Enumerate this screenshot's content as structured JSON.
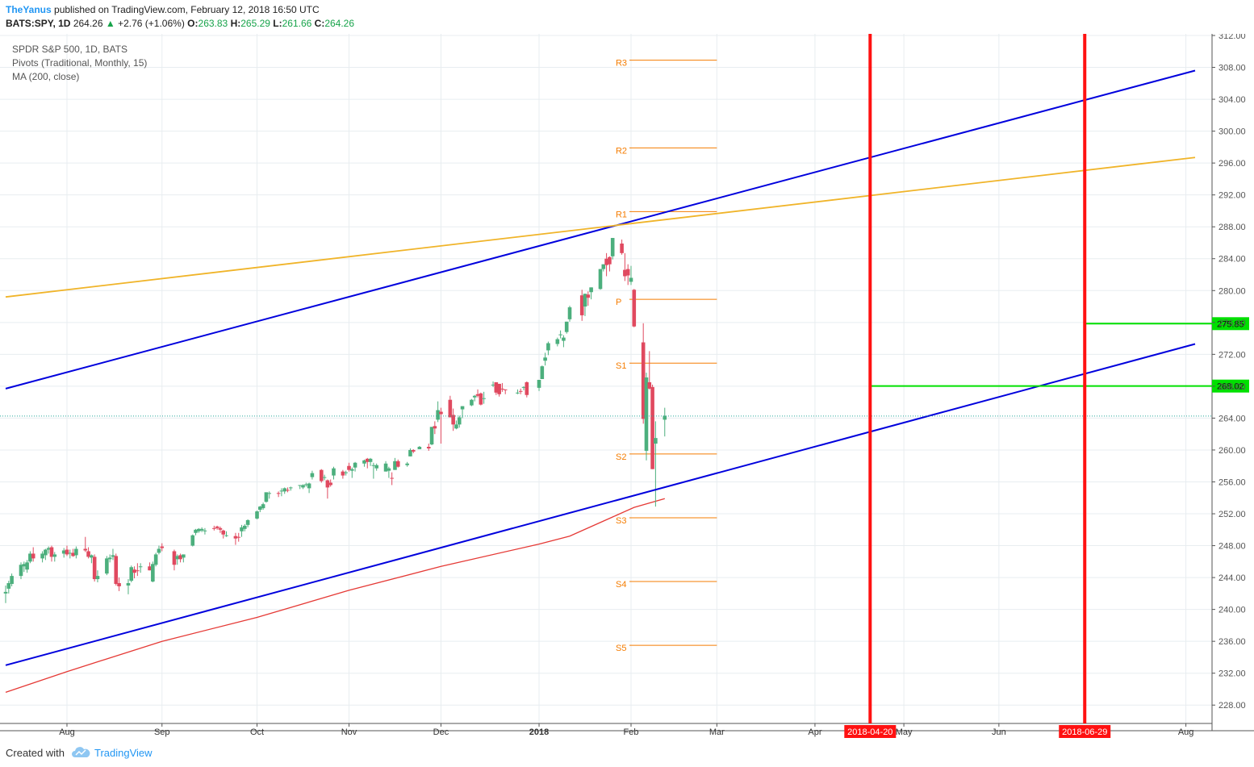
{
  "header": {
    "author": "TheYanus",
    "published_text": "published on TradingView.com, February 12, 2018 16:50 UTC",
    "symbol": "BATS:SPY, 1D",
    "last": "264.26",
    "change_arrow": "▲",
    "change": "+2.76 (+1.06%)",
    "o_label": "O:",
    "o_value": "263.83",
    "h_label": "H:",
    "h_value": "265.29",
    "l_label": "L:",
    "l_value": "261.66",
    "c_label": "C:",
    "c_value": "264.26"
  },
  "legend": {
    "line1": "SPDR S&P 500, 1D, BATS",
    "line2": "Pivots (Traditional, Monthly, 15)",
    "line3": "MA (200, close)"
  },
  "footer": {
    "created_with": "Created with",
    "brand": "TradingView",
    "brand_icon": "tradingview-cloud-icon"
  },
  "colors": {
    "up": "#4caf7d",
    "down": "#e0495f",
    "pivot": "#f57c00",
    "channel": "#0000dd",
    "yellow_line": "#f0b429",
    "ma": "#e53935",
    "vline": "#ff1111",
    "hline": "#00e000",
    "grid": "#e8edf0",
    "last_line": "#26a69a"
  },
  "chart_data": {
    "type": "candlestick",
    "symbol": "SPY",
    "y_axis": {
      "min": 226.0,
      "max": 312.0,
      "ticks": [
        "228.00",
        "232.00",
        "236.00",
        "240.00",
        "244.00",
        "248.00",
        "252.00",
        "256.00",
        "260.00",
        "264.00",
        "268.00",
        "272.00",
        "276.00",
        "280.00",
        "284.00",
        "288.00",
        "292.00",
        "296.00",
        "300.00",
        "304.00",
        "308.00",
        "312.00"
      ]
    },
    "x_axis": {
      "labels": [
        {
          "text": "Aug",
          "date": "2017-08-01",
          "bold": false
        },
        {
          "text": "Sep",
          "date": "2017-09-01",
          "bold": false
        },
        {
          "text": "Oct",
          "date": "2017-10-02",
          "bold": false
        },
        {
          "text": "Nov",
          "date": "2017-11-01",
          "bold": false
        },
        {
          "text": "Dec",
          "date": "2017-12-01",
          "bold": false
        },
        {
          "text": "2018",
          "date": "2018-01-02",
          "bold": true
        },
        {
          "text": "Feb",
          "date": "2018-02-01",
          "bold": false
        },
        {
          "text": "Mar",
          "date": "2018-03-01",
          "bold": false
        },
        {
          "text": "Apr",
          "date": "2018-04-02",
          "bold": false
        },
        {
          "text": "May",
          "date": "2018-05-01",
          "bold": false
        },
        {
          "text": "Jun",
          "date": "2018-06-01",
          "bold": false
        },
        {
          "text": "Aug",
          "date": "2018-08-01",
          "bold": false
        }
      ]
    },
    "last_price": 264.26,
    "candles": [
      [
        "2017-07-12",
        242.0,
        243.0,
        240.8,
        242.2
      ],
      [
        "2017-07-13",
        242.6,
        243.6,
        242.0,
        243.3
      ],
      [
        "2017-07-14",
        243.2,
        244.5,
        242.9,
        244.2
      ],
      [
        "2017-07-17",
        244.2,
        245.9,
        243.8,
        245.6
      ],
      [
        "2017-07-18",
        245.4,
        246.0,
        244.7,
        245.7
      ],
      [
        "2017-07-19",
        245.0,
        246.2,
        244.6,
        245.9
      ],
      [
        "2017-07-20",
        246.0,
        247.3,
        245.8,
        247.0
      ],
      [
        "2017-07-21",
        247.0,
        247.8,
        246.0,
        246.4
      ],
      [
        "2017-07-24",
        246.4,
        247.3,
        245.9,
        247.0
      ],
      [
        "2017-07-25",
        246.8,
        247.6,
        246.2,
        247.5
      ],
      [
        "2017-07-26",
        247.5,
        247.9,
        247.0,
        247.7
      ],
      [
        "2017-07-27",
        247.8,
        248.0,
        246.0,
        246.6
      ],
      [
        "2017-07-28",
        246.6,
        247.2,
        246.0,
        246.9
      ],
      [
        "2017-07-31",
        247.0,
        247.7,
        246.5,
        247.4
      ],
      [
        "2017-08-01",
        247.5,
        248.0,
        246.7,
        246.9
      ],
      [
        "2017-08-02",
        247.0,
        247.5,
        246.4,
        247.1
      ],
      [
        "2017-08-03",
        247.1,
        247.6,
        246.6,
        246.7
      ],
      [
        "2017-08-04",
        246.8,
        247.9,
        246.4,
        247.6
      ],
      [
        "2017-08-07",
        247.6,
        249.1,
        247.2,
        247.4
      ],
      [
        "2017-08-08",
        247.3,
        247.8,
        246.4,
        246.6
      ],
      [
        "2017-08-09",
        246.5,
        246.9,
        245.8,
        246.8
      ],
      [
        "2017-08-10",
        246.6,
        246.9,
        243.5,
        243.8
      ],
      [
        "2017-08-11",
        243.8,
        244.9,
        243.4,
        244.2
      ],
      [
        "2017-08-14",
        244.5,
        246.7,
        244.3,
        246.4
      ],
      [
        "2017-08-15",
        246.3,
        246.9,
        245.9,
        246.5
      ],
      [
        "2017-08-16",
        246.6,
        247.6,
        246.2,
        246.8
      ],
      [
        "2017-08-17",
        246.7,
        247.0,
        243.0,
        243.2
      ],
      [
        "2017-08-18",
        243.3,
        244.0,
        242.3,
        242.9
      ],
      [
        "2017-08-21",
        243.0,
        243.8,
        241.9,
        243.3
      ],
      [
        "2017-08-22",
        243.6,
        245.5,
        243.4,
        245.3
      ],
      [
        "2017-08-23",
        245.0,
        245.4,
        243.9,
        244.6
      ],
      [
        "2017-08-24",
        244.9,
        245.8,
        244.2,
        244.8
      ],
      [
        "2017-08-25",
        245.3,
        245.8,
        244.6,
        245.4
      ],
      [
        "2017-08-28",
        245.4,
        245.9,
        244.9,
        244.9
      ],
      [
        "2017-08-29",
        243.5,
        246.0,
        243.4,
        245.7
      ],
      [
        "2017-08-30",
        245.6,
        247.1,
        245.4,
        246.9
      ],
      [
        "2017-08-31",
        247.1,
        248.0,
        246.9,
        247.6
      ],
      [
        "2017-09-01",
        247.9,
        248.3,
        247.3,
        247.7
      ],
      [
        "2017-09-05",
        247.3,
        247.5,
        244.9,
        245.6
      ],
      [
        "2017-09-06",
        246.3,
        246.9,
        245.6,
        246.7
      ],
      [
        "2017-09-07",
        246.8,
        247.0,
        245.9,
        246.3
      ],
      [
        "2017-09-08",
        246.5,
        246.9,
        245.9,
        246.9
      ],
      [
        "2017-09-11",
        248.0,
        249.4,
        247.9,
        249.3
      ],
      [
        "2017-09-12",
        249.6,
        250.1,
        249.3,
        250.0
      ],
      [
        "2017-09-13",
        249.8,
        250.2,
        249.6,
        250.1
      ],
      [
        "2017-09-14",
        249.9,
        250.3,
        249.7,
        250.1
      ],
      [
        "2017-09-15",
        249.8,
        250.2,
        249.4,
        249.9
      ],
      [
        "2017-09-18",
        250.2,
        250.5,
        249.9,
        250.1
      ],
      [
        "2017-09-19",
        250.4,
        250.5,
        250.0,
        250.2
      ],
      [
        "2017-09-20",
        250.2,
        250.4,
        249.6,
        250.0
      ],
      [
        "2017-09-21",
        249.9,
        250.0,
        248.9,
        249.4
      ],
      [
        "2017-09-22",
        249.2,
        249.8,
        249.1,
        249.3
      ],
      [
        "2017-09-25",
        249.2,
        249.6,
        248.1,
        248.9
      ],
      [
        "2017-09-26",
        249.1,
        249.6,
        248.5,
        249.0
      ],
      [
        "2017-09-27",
        249.8,
        250.6,
        249.1,
        250.3
      ],
      [
        "2017-09-28",
        250.1,
        250.7,
        249.8,
        250.5
      ],
      [
        "2017-09-29",
        250.6,
        251.3,
        250.3,
        251.2
      ],
      [
        "2017-10-02",
        251.4,
        252.4,
        251.3,
        252.3
      ],
      [
        "2017-10-03",
        252.5,
        253.0,
        252.2,
        252.9
      ],
      [
        "2017-10-04",
        252.7,
        253.4,
        252.5,
        253.2
      ],
      [
        "2017-10-05",
        253.5,
        254.6,
        253.4,
        254.7
      ],
      [
        "2017-10-06",
        254.5,
        254.8,
        253.9,
        254.6
      ],
      [
        "2017-10-09",
        254.6,
        254.8,
        254.1,
        254.5
      ],
      [
        "2017-10-10",
        254.9,
        255.2,
        254.2,
        254.9
      ],
      [
        "2017-10-11",
        254.8,
        255.3,
        254.5,
        255.2
      ],
      [
        "2017-10-12",
        255.0,
        255.3,
        254.7,
        254.9
      ],
      [
        "2017-10-13",
        255.2,
        255.4,
        254.9,
        255.3
      ],
      [
        "2017-10-16",
        255.5,
        255.6,
        255.1,
        255.6
      ],
      [
        "2017-10-17",
        255.3,
        255.7,
        255.1,
        255.6
      ],
      [
        "2017-10-18",
        255.6,
        255.9,
        255.4,
        255.7
      ],
      [
        "2017-10-19",
        255.2,
        255.9,
        254.6,
        255.8
      ],
      [
        "2017-10-20",
        256.6,
        257.4,
        256.3,
        257.1
      ],
      [
        "2017-10-23",
        257.5,
        257.6,
        255.9,
        256.1
      ],
      [
        "2017-10-24",
        256.5,
        256.9,
        256.2,
        256.6
      ],
      [
        "2017-10-25",
        256.2,
        256.3,
        253.9,
        255.3
      ],
      [
        "2017-10-26",
        255.9,
        256.3,
        255.4,
        255.6
      ],
      [
        "2017-10-27",
        256.8,
        257.9,
        256.3,
        257.7
      ],
      [
        "2017-10-30",
        257.3,
        257.5,
        256.4,
        256.8
      ],
      [
        "2017-10-31",
        257.2,
        257.4,
        256.8,
        257.2
      ],
      [
        "2017-11-01",
        258.0,
        258.4,
        257.3,
        257.5
      ],
      [
        "2017-11-02",
        257.4,
        257.8,
        256.5,
        257.6
      ],
      [
        "2017-11-03",
        257.8,
        258.5,
        257.3,
        258.4
      ],
      [
        "2017-11-06",
        258.3,
        258.8,
        257.9,
        258.7
      ],
      [
        "2017-11-07",
        258.9,
        259.0,
        257.7,
        258.5
      ],
      [
        "2017-11-08",
        258.5,
        259.0,
        258.0,
        258.9
      ],
      [
        "2017-11-09",
        258.0,
        258.4,
        256.4,
        258.1
      ],
      [
        "2017-11-10",
        257.7,
        258.3,
        257.4,
        258.1
      ],
      [
        "2017-11-13",
        257.3,
        258.6,
        257.3,
        258.3
      ],
      [
        "2017-11-14",
        257.4,
        257.9,
        256.5,
        257.7
      ],
      [
        "2017-11-15",
        256.5,
        257.2,
        255.6,
        256.4
      ],
      [
        "2017-11-16",
        257.5,
        259.0,
        257.5,
        258.6
      ],
      [
        "2017-11-17",
        258.6,
        258.8,
        257.8,
        257.9
      ],
      [
        "2017-11-20",
        258.1,
        258.5,
        257.9,
        258.3
      ],
      [
        "2017-11-21",
        259.2,
        260.2,
        259.2,
        260.0
      ],
      [
        "2017-11-22",
        260.0,
        260.1,
        259.6,
        259.8
      ],
      [
        "2017-11-24",
        260.1,
        260.5,
        260.1,
        260.4
      ],
      [
        "2017-11-27",
        260.4,
        260.8,
        259.9,
        260.2
      ],
      [
        "2017-11-28",
        260.7,
        262.9,
        260.6,
        262.9
      ],
      [
        "2017-11-29",
        263.0,
        263.6,
        262.0,
        262.7
      ],
      [
        "2017-11-30",
        263.8,
        266.1,
        263.5,
        265.0
      ],
      [
        "2017-12-01",
        264.8,
        265.3,
        260.8,
        264.5
      ],
      [
        "2017-12-04",
        266.3,
        266.8,
        264.1,
        264.1
      ],
      [
        "2017-12-05",
        264.4,
        265.2,
        262.4,
        263.2
      ],
      [
        "2017-12-06",
        262.7,
        263.7,
        262.6,
        263.2
      ],
      [
        "2017-12-07",
        263.2,
        264.3,
        262.8,
        264.1
      ],
      [
        "2017-12-08",
        265.1,
        265.5,
        264.0,
        265.5
      ],
      [
        "2017-12-11",
        265.6,
        266.4,
        265.5,
        266.3
      ],
      [
        "2017-12-12",
        266.6,
        266.9,
        266.1,
        266.8
      ],
      [
        "2017-12-13",
        267.0,
        267.6,
        266.6,
        266.8
      ],
      [
        "2017-12-14",
        267.1,
        267.2,
        265.6,
        265.7
      ],
      [
        "2017-12-15",
        266.4,
        267.3,
        265.8,
        266.5
      ],
      [
        "2017-12-18",
        268.1,
        268.6,
        267.9,
        268.2
      ],
      [
        "2017-12-19",
        268.5,
        268.5,
        266.9,
        267.2
      ],
      [
        "2017-12-20",
        268.3,
        268.3,
        266.7,
        267.0
      ],
      [
        "2017-12-21",
        267.7,
        268.4,
        267.3,
        267.6
      ],
      [
        "2017-12-22",
        267.6,
        267.6,
        267.0,
        267.5
      ],
      [
        "2017-12-26",
        267.1,
        267.6,
        267.0,
        267.2
      ],
      [
        "2017-12-27",
        267.4,
        267.7,
        267.0,
        267.3
      ],
      [
        "2017-12-28",
        267.9,
        268.0,
        267.5,
        267.9
      ],
      [
        "2017-12-29",
        268.5,
        268.6,
        266.6,
        266.9
      ],
      [
        "2018-01-02",
        267.8,
        268.8,
        267.4,
        268.8
      ],
      [
        "2018-01-03",
        268.9,
        270.6,
        268.9,
        270.5
      ],
      [
        "2018-01-04",
        271.2,
        272.2,
        270.6,
        271.6
      ],
      [
        "2018-01-05",
        272.5,
        273.6,
        271.9,
        273.4
      ],
      [
        "2018-01-08",
        273.3,
        274.1,
        273.0,
        273.9
      ],
      [
        "2018-01-09",
        274.4,
        275.0,
        274.0,
        274.5
      ],
      [
        "2018-01-10",
        273.7,
        274.4,
        272.9,
        274.1
      ],
      [
        "2018-01-11",
        274.8,
        276.1,
        274.6,
        276.1
      ],
      [
        "2018-01-12",
        276.4,
        278.1,
        276.1,
        277.9
      ],
      [
        "2018-01-16",
        279.4,
        280.1,
        276.2,
        276.9
      ],
      [
        "2018-01-17",
        278.0,
        279.6,
        276.8,
        279.6
      ],
      [
        "2018-01-18",
        279.5,
        279.9,
        278.1,
        279.1
      ],
      [
        "2018-01-19",
        279.8,
        280.4,
        278.9,
        280.4
      ],
      [
        "2018-01-22",
        280.2,
        282.7,
        280.1,
        282.7
      ],
      [
        "2018-01-23",
        282.7,
        283.3,
        282.4,
        283.3
      ],
      [
        "2018-01-24",
        284.0,
        284.7,
        281.8,
        283.2
      ],
      [
        "2018-01-25",
        284.2,
        284.3,
        282.4,
        283.3
      ],
      [
        "2018-01-26",
        284.3,
        286.6,
        283.9,
        286.6
      ],
      [
        "2018-01-29",
        285.9,
        286.4,
        284.5,
        284.7
      ],
      [
        "2018-01-30",
        282.6,
        284.7,
        281.2,
        281.8
      ],
      [
        "2018-01-31",
        282.7,
        283.3,
        280.7,
        281.9
      ],
      [
        "2018-02-01",
        281.1,
        283.1,
        280.7,
        281.6
      ],
      [
        "2018-02-02",
        280.1,
        280.2,
        275.4,
        275.5
      ],
      [
        "2018-02-05",
        273.5,
        275.9,
        263.3,
        263.9
      ],
      [
        "2018-02-06",
        259.9,
        269.7,
        258.7,
        269.1
      ],
      [
        "2018-02-07",
        268.5,
        272.4,
        267.6,
        267.7
      ],
      [
        "2018-02-08",
        267.9,
        268.2,
        257.6,
        257.6
      ],
      [
        "2018-02-09",
        260.8,
        263.6,
        252.9,
        261.5
      ],
      [
        "2018-02-12",
        263.8,
        265.3,
        261.7,
        264.3
      ]
    ],
    "pivot_levels": [
      {
        "label": "R3",
        "value": 308.9
      },
      {
        "label": "R2",
        "value": 297.9
      },
      {
        "label": "R1",
        "value": 289.9
      },
      {
        "label": "P",
        "value": 278.9
      },
      {
        "label": "S1",
        "value": 270.9
      },
      {
        "label": "S2",
        "value": 259.5
      },
      {
        "label": "S3",
        "value": 251.5
      },
      {
        "label": "S4",
        "value": 243.5
      },
      {
        "label": "S5",
        "value": 235.5
      }
    ],
    "pivot_start": "2018-02-01",
    "pivot_end": "2018-03-01",
    "trendlines": [
      {
        "name": "upper-channel",
        "color": "channel",
        "p1": [
          "2017-07-12",
          267.7
        ],
        "p2": [
          "2018-08-04",
          307.6
        ]
      },
      {
        "name": "lower-channel",
        "color": "channel",
        "p1": [
          "2017-07-12",
          233.0
        ],
        "p2": [
          "2018-08-04",
          273.3
        ]
      },
      {
        "name": "yellow-trendline",
        "color": "yellow_line",
        "p1": [
          "2017-07-12",
          279.2
        ],
        "p2": [
          "2018-08-04",
          296.7
        ]
      }
    ],
    "moving_average": {
      "name": "MA (200, close)",
      "points": [
        [
          "2017-07-12",
          229.6
        ],
        [
          "2017-08-01",
          232.2
        ],
        [
          "2017-09-01",
          236.0
        ],
        [
          "2017-10-02",
          239.0
        ],
        [
          "2017-11-01",
          242.4
        ],
        [
          "2017-12-01",
          245.4
        ],
        [
          "2018-01-02",
          248.2
        ],
        [
          "2018-01-12",
          249.2
        ],
        [
          "2018-01-26",
          251.6
        ],
        [
          "2018-02-02",
          252.8
        ],
        [
          "2018-02-12",
          253.9
        ]
      ]
    },
    "vertical_markers": [
      {
        "date": "2018-04-20",
        "label": "2018-04-20"
      },
      {
        "date": "2018-06-29",
        "label": "2018-06-29"
      }
    ],
    "horizontal_segments": [
      {
        "from": "2018-04-20",
        "value": 268.02,
        "label": "268.02"
      },
      {
        "from": "2018-06-29",
        "value": 275.85,
        "label": "275.85"
      }
    ]
  }
}
